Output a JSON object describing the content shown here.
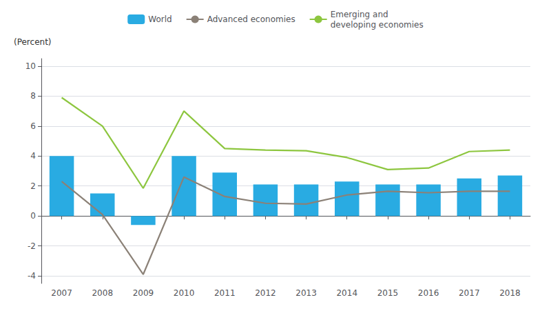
{
  "chart_data": {
    "type": "bar",
    "ylabel": "(Percent)",
    "categories": [
      "2007",
      "2008",
      "2009",
      "2010",
      "2011",
      "2012",
      "2013",
      "2014",
      "2015",
      "2016",
      "2017",
      "2018"
    ],
    "series": [
      {
        "name": "World",
        "type": "bar",
        "color": "#29ABE2",
        "values": [
          4.0,
          1.5,
          -0.6,
          4.0,
          2.9,
          2.1,
          2.1,
          2.3,
          2.1,
          2.1,
          2.5,
          2.7
        ]
      },
      {
        "name": "Advanced economies",
        "type": "line",
        "color": "#8B8177",
        "values": [
          2.3,
          0.1,
          -3.9,
          2.6,
          1.3,
          0.85,
          0.8,
          1.4,
          1.65,
          1.55,
          1.65,
          1.65
        ]
      },
      {
        "name": "Emerging and\ndeveloping economies",
        "type": "line",
        "color": "#8DC63F",
        "values": [
          7.9,
          6.0,
          1.85,
          7.0,
          4.5,
          4.4,
          4.35,
          3.9,
          3.1,
          3.2,
          4.3,
          4.4
        ]
      }
    ],
    "ylim": [
      -4.5,
      10.5
    ],
    "yticks": [
      -4,
      -2,
      0,
      2,
      4,
      6,
      8,
      10
    ],
    "grid": true,
    "legend": "top"
  }
}
